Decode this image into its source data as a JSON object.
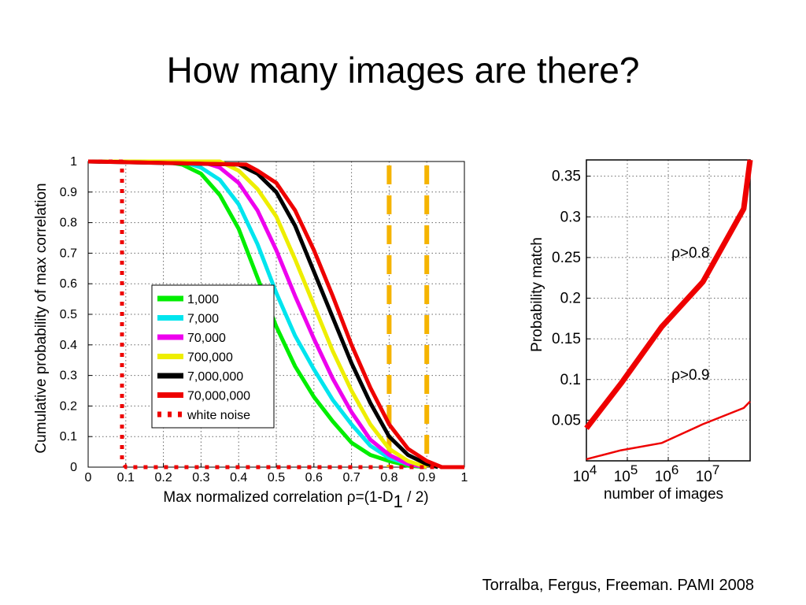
{
  "slide": {
    "title": "How many images are there?",
    "citation": "Torralba, Fergus, Freeman. PAMI 2008"
  },
  "chart_data": [
    {
      "type": "line",
      "xlabel": "Max normalized correlation ρ=(1-D",
      "xlabel_sub": "1",
      "xlabel_end": " / 2)",
      "ylabel": "Cumulative probability of max correlation",
      "xlim": [
        0,
        1
      ],
      "ylim": [
        0,
        1
      ],
      "xticks": [
        0,
        0.1,
        0.2,
        0.3,
        0.4,
        0.5,
        0.6,
        0.7,
        0.8,
        0.9,
        1
      ],
      "xtick_labels": [
        "0",
        "0.1",
        "0.2",
        "0.3",
        "0.4",
        "0.5",
        "0.6",
        "0.7",
        "0.8",
        "0.9",
        "1"
      ],
      "yticks": [
        0,
        0.1,
        0.2,
        0.3,
        0.4,
        0.5,
        0.6,
        0.7,
        0.8,
        0.9,
        1
      ],
      "ytick_labels": [
        "0",
        "0.1",
        "0.2",
        "0.3",
        "0.4",
        "0.5",
        "0.6",
        "0.7",
        "0.8",
        "0.9",
        "1"
      ],
      "grid": true,
      "legend_position": "center-left",
      "series": [
        {
          "name": "1,000",
          "color": "#00ee00",
          "x": [
            0,
            0.2,
            0.25,
            0.3,
            0.35,
            0.4,
            0.45,
            0.5,
            0.55,
            0.6,
            0.65,
            0.7,
            0.75,
            0.8,
            0.85,
            0.9
          ],
          "y": [
            1,
            1,
            0.99,
            0.96,
            0.89,
            0.78,
            0.62,
            0.46,
            0.33,
            0.23,
            0.15,
            0.08,
            0.04,
            0.02,
            0.005,
            0
          ]
        },
        {
          "name": "7,000",
          "color": "#00e5ee",
          "x": [
            0,
            0.25,
            0.3,
            0.35,
            0.4,
            0.45,
            0.5,
            0.55,
            0.6,
            0.65,
            0.7,
            0.75,
            0.8,
            0.85,
            0.9
          ],
          "y": [
            1,
            1,
            0.98,
            0.94,
            0.86,
            0.73,
            0.57,
            0.43,
            0.32,
            0.22,
            0.14,
            0.07,
            0.03,
            0.01,
            0
          ]
        },
        {
          "name": "70,000",
          "color": "#ee00ee",
          "x": [
            0,
            0.3,
            0.35,
            0.4,
            0.45,
            0.5,
            0.55,
            0.6,
            0.65,
            0.7,
            0.75,
            0.8,
            0.85,
            0.9
          ],
          "y": [
            1,
            1,
            0.98,
            0.93,
            0.84,
            0.71,
            0.56,
            0.42,
            0.29,
            0.18,
            0.09,
            0.04,
            0.01,
            0
          ]
        },
        {
          "name": "700,000",
          "color": "#eeee00",
          "x": [
            0,
            0.35,
            0.4,
            0.45,
            0.5,
            0.55,
            0.6,
            0.65,
            0.7,
            0.75,
            0.8,
            0.85,
            0.9
          ],
          "y": [
            1,
            1,
            0.97,
            0.91,
            0.82,
            0.68,
            0.53,
            0.38,
            0.25,
            0.14,
            0.06,
            0.02,
            0
          ]
        },
        {
          "name": "7,000,000",
          "color": "#000000",
          "x": [
            0,
            0.4,
            0.45,
            0.5,
            0.55,
            0.6,
            0.65,
            0.7,
            0.75,
            0.8,
            0.85,
            0.9,
            0.93
          ],
          "y": [
            1,
            0.99,
            0.96,
            0.9,
            0.79,
            0.64,
            0.49,
            0.34,
            0.21,
            0.1,
            0.04,
            0.01,
            0
          ]
        },
        {
          "name": "70,000,000",
          "color": "#ee0000",
          "x": [
            0,
            0.42,
            0.45,
            0.5,
            0.55,
            0.6,
            0.65,
            0.7,
            0.75,
            0.8,
            0.85,
            0.9,
            0.94,
            1
          ],
          "y": [
            1,
            0.99,
            0.97,
            0.93,
            0.84,
            0.71,
            0.56,
            0.4,
            0.26,
            0.14,
            0.06,
            0.02,
            0,
            0
          ]
        },
        {
          "name": "white noise",
          "color": "#ee0000",
          "dotted": true,
          "x": [
            0,
            0.09,
            0.09,
            0.1,
            1
          ],
          "y": [
            1,
            1,
            0.02,
            0,
            0
          ]
        }
      ],
      "vlines": [
        {
          "x": 0.8,
          "color": "#f5b400",
          "dashed": true
        },
        {
          "x": 0.9,
          "color": "#f5b400",
          "dashed": true
        }
      ]
    },
    {
      "type": "line",
      "xlabel": "number of images",
      "ylabel": "Probability match",
      "xscale": "log",
      "xlim": [
        10000,
        100000000
      ],
      "ylim": [
        0,
        0.37
      ],
      "xticks": [
        10000,
        100000,
        1000000,
        10000000
      ],
      "xtick_labels": [
        {
          "base": "10",
          "exp": "4"
        },
        {
          "base": "10",
          "exp": "5"
        },
        {
          "base": "10",
          "exp": "6"
        },
        {
          "base": "10",
          "exp": "7"
        }
      ],
      "yticks": [
        0.05,
        0.1,
        0.15,
        0.2,
        0.25,
        0.3,
        0.35
      ],
      "ytick_labels": [
        "0.05",
        "0.1",
        "0.15",
        "0.2",
        "0.25",
        "0.3",
        "0.35"
      ],
      "grid": true,
      "series": [
        {
          "name": "ρ>0.8",
          "color": "#ee0000",
          "x": [
            10000,
            70000,
            700000,
            7000000,
            70000000,
            100000000
          ],
          "y": [
            0.04,
            0.095,
            0.165,
            0.22,
            0.31,
            0.37
          ]
        },
        {
          "name": "ρ>0.9",
          "color": "#ee0000",
          "x": [
            10000,
            70000,
            700000,
            7000000,
            70000000,
            100000000
          ],
          "y": [
            0.002,
            0.013,
            0.022,
            0.045,
            0.065,
            0.073
          ]
        }
      ],
      "annotations": [
        {
          "text": "ρ>0.8",
          "x": 1200000,
          "y": 0.25
        },
        {
          "text": "ρ>0.9",
          "x": 1200000,
          "y": 0.1
        }
      ]
    }
  ]
}
